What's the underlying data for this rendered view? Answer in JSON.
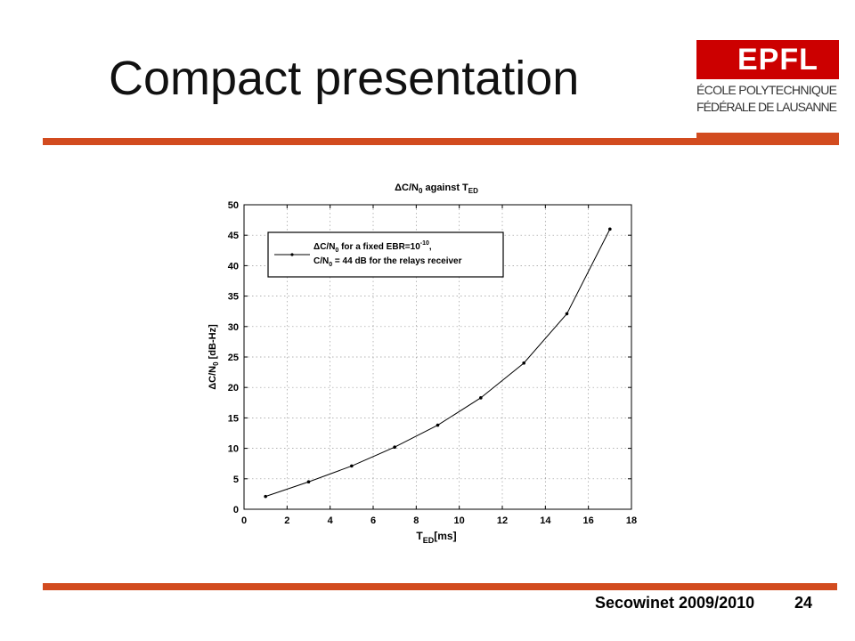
{
  "slide": {
    "title": "Compact presentation",
    "footer_text": "Secowinet 2009/2010",
    "page_number": "24",
    "accent_color": "#d24b1f"
  },
  "logo": {
    "mark": "EPFL",
    "line1": "ÉCOLE POLYTECHNIQUE",
    "line2": "FÉDÉRALE DE LAUSANNE",
    "color": "#cc0000"
  },
  "chart_data": {
    "type": "line",
    "title": "ΔC/N0 against TED",
    "xlabel": "TED[ms]",
    "ylabel": "ΔC/N0 [dB-Hz]",
    "xlim": [
      0,
      18
    ],
    "ylim": [
      0,
      50
    ],
    "xticks": [
      0,
      2,
      4,
      6,
      8,
      10,
      12,
      14,
      16,
      18
    ],
    "yticks": [
      0,
      5,
      10,
      15,
      20,
      25,
      30,
      35,
      40,
      45,
      50
    ],
    "grid": true,
    "legend": "top-left",
    "series": [
      {
        "name": "ΔC/N0 for a fixed EBR=10^-10, C/N0 = 44 dB for the relays receiver",
        "marker": "dot",
        "x": [
          1,
          3,
          5,
          7,
          9,
          11,
          13,
          15,
          17
        ],
        "y": [
          2.1,
          4.5,
          7.1,
          10.2,
          13.8,
          18.3,
          24.0,
          32.1,
          46.0
        ]
      }
    ]
  }
}
